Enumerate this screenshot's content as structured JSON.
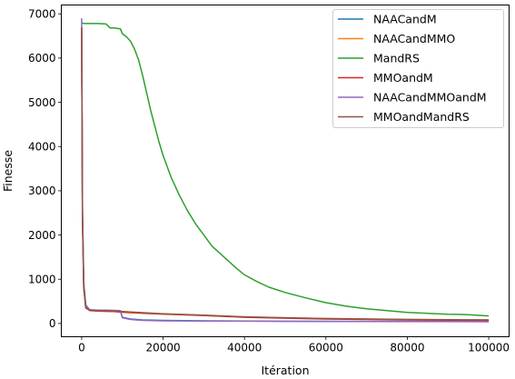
{
  "chart_data": {
    "type": "line",
    "title": "",
    "xlabel": "Itération",
    "ylabel": "Finesse",
    "xlim": [
      -5000,
      105000
    ],
    "ylim": [
      -300,
      7200
    ],
    "xticks": [
      0,
      20000,
      40000,
      60000,
      80000,
      100000
    ],
    "yticks": [
      0,
      1000,
      2000,
      3000,
      4000,
      5000,
      6000,
      7000
    ],
    "grid": false,
    "legend_position": "top-right",
    "series": [
      {
        "name": "NAACandM",
        "color": "#1f77b4",
        "points": [
          [
            0,
            6700
          ],
          [
            200,
            2500
          ],
          [
            500,
            900
          ],
          [
            1000,
            420
          ],
          [
            2000,
            300
          ],
          [
            4000,
            290
          ],
          [
            6000,
            290
          ],
          [
            8000,
            285
          ],
          [
            9500,
            280
          ],
          [
            10000,
            140
          ],
          [
            12000,
            100
          ],
          [
            15000,
            80
          ],
          [
            20000,
            70
          ],
          [
            30000,
            60
          ],
          [
            50000,
            50
          ],
          [
            70000,
            48
          ],
          [
            100000,
            45
          ]
        ]
      },
      {
        "name": "NAACandMMO",
        "color": "#ff7f0e",
        "points": [
          [
            0,
            6600
          ],
          [
            200,
            2300
          ],
          [
            500,
            850
          ],
          [
            1000,
            380
          ],
          [
            2000,
            300
          ],
          [
            4000,
            280
          ],
          [
            8000,
            270
          ],
          [
            10000,
            250
          ],
          [
            15000,
            230
          ],
          [
            20000,
            210
          ],
          [
            30000,
            180
          ],
          [
            40000,
            150
          ],
          [
            50000,
            130
          ],
          [
            60000,
            110
          ],
          [
            70000,
            100
          ],
          [
            80000,
            90
          ],
          [
            90000,
            85
          ],
          [
            100000,
            80
          ]
        ]
      },
      {
        "name": "MandRS",
        "color": "#2ca02c",
        "points": [
          [
            0,
            6800
          ],
          [
            500,
            6780
          ],
          [
            2000,
            6780
          ],
          [
            4000,
            6780
          ],
          [
            6000,
            6770
          ],
          [
            7000,
            6680
          ],
          [
            8000,
            6680
          ],
          [
            9500,
            6660
          ],
          [
            10000,
            6550
          ],
          [
            11000,
            6480
          ],
          [
            12000,
            6380
          ],
          [
            13000,
            6200
          ],
          [
            14000,
            5950
          ],
          [
            15000,
            5600
          ],
          [
            16000,
            5200
          ],
          [
            17000,
            4800
          ],
          [
            18000,
            4450
          ],
          [
            19000,
            4100
          ],
          [
            20000,
            3800
          ],
          [
            22000,
            3300
          ],
          [
            24000,
            2900
          ],
          [
            26000,
            2550
          ],
          [
            28000,
            2250
          ],
          [
            30000,
            2000
          ],
          [
            32000,
            1750
          ],
          [
            35000,
            1500
          ],
          [
            38000,
            1250
          ],
          [
            40000,
            1100
          ],
          [
            43000,
            950
          ],
          [
            46000,
            820
          ],
          [
            50000,
            700
          ],
          [
            55000,
            580
          ],
          [
            60000,
            470
          ],
          [
            65000,
            390
          ],
          [
            70000,
            330
          ],
          [
            75000,
            290
          ],
          [
            80000,
            250
          ],
          [
            85000,
            230
          ],
          [
            90000,
            210
          ],
          [
            95000,
            200
          ],
          [
            100000,
            170
          ]
        ]
      },
      {
        "name": "MMOandM",
        "color": "#d62728",
        "points": [
          [
            0,
            6650
          ],
          [
            200,
            2400
          ],
          [
            500,
            800
          ],
          [
            1000,
            350
          ],
          [
            2000,
            290
          ],
          [
            4000,
            280
          ],
          [
            8000,
            270
          ],
          [
            10000,
            260
          ],
          [
            15000,
            235
          ],
          [
            20000,
            215
          ],
          [
            30000,
            180
          ],
          [
            40000,
            140
          ],
          [
            50000,
            120
          ],
          [
            60000,
            100
          ],
          [
            70000,
            90
          ],
          [
            80000,
            80
          ],
          [
            90000,
            75
          ],
          [
            100000,
            60
          ]
        ]
      },
      {
        "name": "NAACandMMOandM",
        "color": "#9467bd",
        "points": [
          [
            0,
            6900
          ],
          [
            200,
            2600
          ],
          [
            500,
            950
          ],
          [
            1000,
            400
          ],
          [
            2000,
            310
          ],
          [
            4000,
            300
          ],
          [
            6000,
            300
          ],
          [
            8000,
            295
          ],
          [
            9500,
            290
          ],
          [
            10000,
            130
          ],
          [
            12000,
            90
          ],
          [
            15000,
            70
          ],
          [
            20000,
            60
          ],
          [
            30000,
            55
          ],
          [
            50000,
            50
          ],
          [
            70000,
            45
          ],
          [
            100000,
            40
          ]
        ]
      },
      {
        "name": "MMOandMandRS",
        "color": "#8c564b",
        "points": [
          [
            0,
            6700
          ],
          [
            200,
            2450
          ],
          [
            500,
            820
          ],
          [
            1000,
            360
          ],
          [
            2000,
            300
          ],
          [
            4000,
            290
          ],
          [
            8000,
            280
          ],
          [
            10000,
            270
          ],
          [
            15000,
            245
          ],
          [
            20000,
            220
          ],
          [
            30000,
            190
          ],
          [
            40000,
            150
          ],
          [
            50000,
            130
          ],
          [
            60000,
            110
          ],
          [
            70000,
            100
          ],
          [
            80000,
            90
          ],
          [
            90000,
            85
          ],
          [
            100000,
            80
          ]
        ]
      }
    ]
  }
}
